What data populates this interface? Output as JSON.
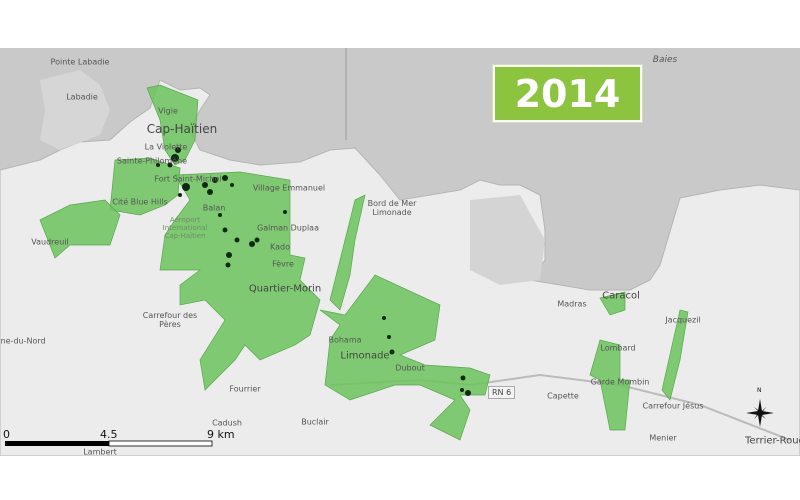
{
  "year_badge": {
    "label": "2014",
    "color": "#8cc43f"
  },
  "colors": {
    "sea": "#c9c9c9",
    "land": "#ececec",
    "zone_fill": "#6cc35e",
    "points": "#0f2a12"
  },
  "places": {
    "pointe_labadie": "Pointe Labadie",
    "labadie": "Labadie",
    "vigie": "Vigie",
    "cap_haitien": "Cap-Haïtien",
    "la_violette": "La Violette",
    "sainte_philomene": "Sainte-Philomène",
    "fort_saint_michel": "Fort Saint-Michel",
    "cite_blue_hills": "Cité Blue Hills",
    "vaudreuil": "Vaudreuil",
    "village_emmanuel": "Village Emmanuel",
    "balan": "Balan",
    "aeroport": "Aéroport International Cap-Haïtien",
    "galman_duplaa": "Galman Duplaa",
    "kado": "Kado",
    "fevre": "Fèvre",
    "quartier_morin": "Quartier-Morin",
    "carrefour_des_peres": "Carrefour des Pères",
    "plaine_du_nord": "Plaine-du-Nord",
    "bord_de_mer": "Bord de Mer Limonade",
    "bohama": "Bohama",
    "limonade": "Limonade",
    "fourrier": "Fourrier",
    "cadush": "Cadush",
    "buclair": "Buclair",
    "lambert": "Lambert",
    "dubout": "Dubout",
    "madras": "Madras",
    "caracol": "Caracol",
    "jacquezil": "Jacquezil",
    "lombard": "Lombard",
    "garde_mombin": "Garde Mombin",
    "capette": "Capette",
    "carrefour_jesus": "Carrefour Jésus",
    "menier": "Menier",
    "terrier_rouge": "Terrier-Rouge",
    "baies": "Baies"
  },
  "road_badge": "RN 6",
  "scale_bar": {
    "ticks": [
      "0",
      "4.5",
      "9 km"
    ]
  },
  "north_arrow": {
    "label": "N",
    "icon": "compass-star-icon"
  }
}
